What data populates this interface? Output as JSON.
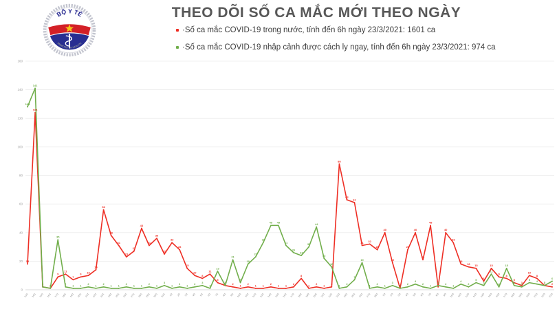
{
  "header": {
    "title": "THEO DÕI SỐ CA MẮC MỚI THEO NGÀY",
    "logo": {
      "top_text": "BỘ Y TẾ",
      "bottom_text": "MINISTRY OF HEALTH"
    },
    "legend": [
      {
        "label": "·Số ca mắc COVID-19 trong nước, tính đến 6h ngày 23/3/2021: 1601 ca",
        "color": "#ee2e24"
      },
      {
        "label": "·Số ca mắc COVID-19 nhập cảnh được cách ly ngay, tính đến 6h ngày 23/3/2021: 974 ca",
        "color": "#71ae4b"
      }
    ]
  },
  "chart_data": {
    "type": "line",
    "title": "THEO DÕI SỐ CA MẮC MỚI THEO NGÀY",
    "xlabel": "",
    "ylabel": "",
    "ylim": [
      0,
      160
    ],
    "ytick_step": 20,
    "grid": true,
    "legend_position": "top-left",
    "categories": [
      "13/1",
      "14/1",
      "15/1",
      "16/1",
      "17/1",
      "18/1",
      "19/1",
      "20/1",
      "21/1",
      "22/1",
      "23/1",
      "24/1",
      "25/1",
      "26/1",
      "27/1",
      "28/1",
      "29/1",
      "30/1",
      "31/1",
      "1/2",
      "2/2",
      "3/2",
      "4/2",
      "5/2",
      "6/2",
      "7/2",
      "8/2",
      "9/2",
      "10/2",
      "11/2",
      "12/2",
      "13/2",
      "14/2",
      "15/2",
      "16/2",
      "17/2",
      "18/2",
      "19/2",
      "20/2",
      "21/2",
      "22/2",
      "23/2",
      "24/2",
      "25/2",
      "26/2",
      "27/2",
      "28/2",
      "1/3",
      "2/3",
      "3/3",
      "4/3",
      "5/3",
      "6/3",
      "7/3",
      "8/3",
      "9/3",
      "10/3",
      "11/3",
      "12/3",
      "13/3",
      "14/3",
      "15/3",
      "16/3",
      "17/3",
      "18/3",
      "19/3",
      "20/3",
      "21/3",
      "22/3",
      "23/3"
    ],
    "series": [
      {
        "name": "Số ca mắc COVID-19 trong nước",
        "color": "#ee2e24",
        "values": [
          18,
          124,
          2,
          1,
          9,
          11,
          7,
          9,
          10,
          14,
          56,
          38,
          31,
          23,
          27,
          43,
          31,
          36,
          25,
          33,
          28,
          15,
          10,
          8,
          11,
          5,
          3,
          2,
          1,
          2,
          1,
          1,
          2,
          1,
          1,
          2,
          8,
          1,
          2,
          1,
          2,
          88,
          63,
          61,
          31,
          32,
          28,
          40,
          19,
          1,
          28,
          40,
          21,
          45,
          2,
          40,
          33,
          18,
          16,
          15,
          6,
          15,
          9,
          8,
          5,
          3,
          10,
          8,
          3,
          2
        ]
      },
      {
        "name": "Số ca mắc COVID-19 nhập cảnh được cách ly ngay",
        "color": "#71ae4b",
        "values": [
          128,
          141,
          2,
          1,
          35,
          2,
          1,
          1,
          2,
          1,
          2,
          1,
          1,
          2,
          1,
          1,
          2,
          1,
          3,
          1,
          2,
          1,
          2,
          3,
          1,
          13,
          3,
          21,
          5,
          18,
          23,
          33,
          45,
          45,
          31,
          26,
          24,
          30,
          44,
          22,
          16,
          1,
          2,
          7,
          19,
          1,
          2,
          1,
          3,
          1,
          2,
          4,
          2,
          1,
          3,
          2,
          1,
          4,
          2,
          5,
          3,
          11,
          2,
          15,
          3,
          2,
          5,
          4,
          3,
          6
        ]
      }
    ]
  }
}
